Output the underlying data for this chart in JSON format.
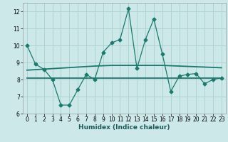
{
  "xlabel": "Humidex (Indice chaleur)",
  "x": [
    0,
    1,
    2,
    3,
    4,
    5,
    6,
    7,
    8,
    9,
    10,
    11,
    12,
    13,
    14,
    15,
    16,
    17,
    18,
    19,
    20,
    21,
    22,
    23
  ],
  "y_line": [
    10,
    8.9,
    8.6,
    8.0,
    6.5,
    6.5,
    7.4,
    8.3,
    8.0,
    9.6,
    10.15,
    10.35,
    12.15,
    8.65,
    10.35,
    11.55,
    9.5,
    7.3,
    8.2,
    8.3,
    8.35,
    7.75,
    8.0,
    8.1
  ],
  "y_reg1": [
    8.55,
    8.58,
    8.61,
    8.64,
    8.67,
    8.7,
    8.73,
    8.76,
    8.79,
    8.81,
    8.83,
    8.83,
    8.83,
    8.83,
    8.83,
    8.83,
    8.83,
    8.81,
    8.79,
    8.77,
    8.75,
    8.73,
    8.71,
    8.69
  ],
  "y_reg2": [
    8.1,
    8.1,
    8.1,
    8.1,
    8.1,
    8.1,
    8.1,
    8.1,
    8.1,
    8.1,
    8.1,
    8.1,
    8.1,
    8.1,
    8.1,
    8.1,
    8.1,
    8.1,
    8.1,
    8.1,
    8.1,
    8.1,
    8.1,
    8.1
  ],
  "line_color": "#1a7a6e",
  "bg_color": "#cce8e8",
  "grid_color": "#aad0d0",
  "ylim": [
    6,
    12.5
  ],
  "xlim": [
    -0.5,
    23.5
  ],
  "yticks": [
    6,
    7,
    8,
    9,
    10,
    11,
    12
  ],
  "xticks": [
    0,
    1,
    2,
    3,
    4,
    5,
    6,
    7,
    8,
    9,
    10,
    11,
    12,
    13,
    14,
    15,
    16,
    17,
    18,
    19,
    20,
    21,
    22,
    23
  ]
}
